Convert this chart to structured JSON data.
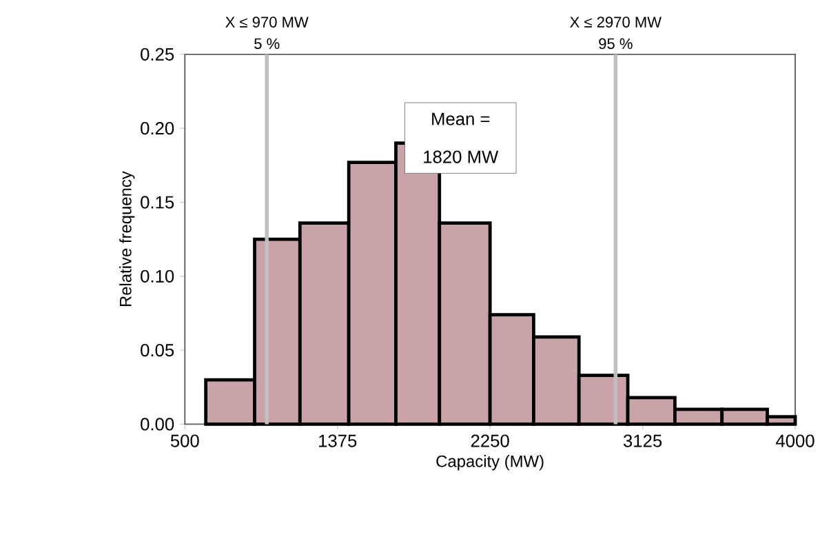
{
  "chart_data": {
    "type": "histogram",
    "xlabel": "Capacity (MW)",
    "ylabel": "Relative frequency",
    "bins": [
      620,
      900,
      1160,
      1440,
      1710,
      1960,
      2250,
      2500,
      2760,
      3040,
      3310,
      3580,
      3840,
      4000
    ],
    "values": [
      0.03,
      0.125,
      0.136,
      0.177,
      0.19,
      0.136,
      0.074,
      0.059,
      0.033,
      0.018,
      0.01,
      0.01,
      0.005
    ],
    "color": "#c9a3a8",
    "xlim": [
      500,
      4000
    ],
    "xticks": [
      500,
      1375,
      2250,
      3125,
      4000
    ],
    "ylim": [
      0,
      0.25
    ],
    "yticks": [
      {
        "value": 0,
        "label": "0.00"
      },
      {
        "value": 0.05,
        "label": "0.05"
      },
      {
        "value": 0.1,
        "label": "0.10"
      },
      {
        "value": 0.15,
        "label": "0.15"
      },
      {
        "value": 0.2,
        "label": "0.20"
      },
      {
        "value": 0.25,
        "label": "0.25"
      }
    ],
    "ref_lines": [
      {
        "axis": "x",
        "value": 970,
        "label": "X ≤ 970 MW",
        "color": "#c0c0c0"
      },
      {
        "axis": "x",
        "value": 2970,
        "label": "X ≤ 2970 MW",
        "color": "#c0c0c0"
      }
    ],
    "annotations": [
      {
        "text": "5 %",
        "x": 970,
        "y": 0.25
      },
      {
        "text": "95 %",
        "x": 2970,
        "y": 0.25
      },
      "Mean =",
      "1820 MW"
    ],
    "grid": false
  }
}
